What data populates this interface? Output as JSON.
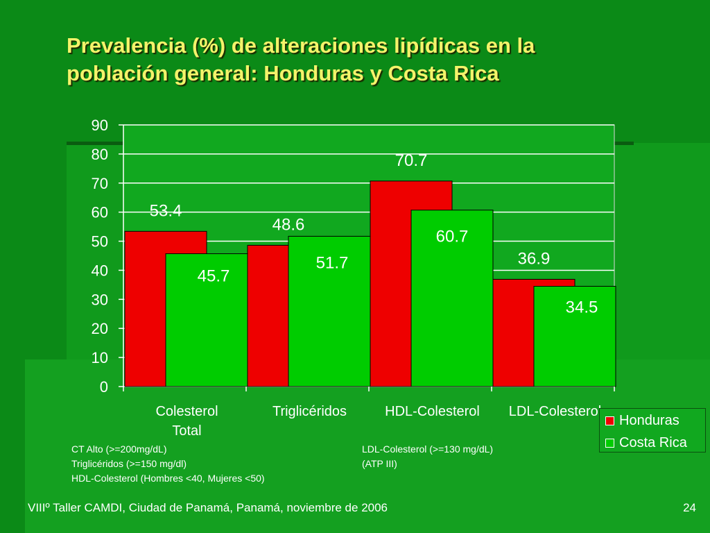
{
  "slide": {
    "title_line1": "Prevalencia (%) de alteraciones lipídicas en la",
    "title_line2": "población general: Honduras y Costa Rica",
    "footer": "VIIIº Taller CAMDI, Ciudad de Panamá, Panamá, noviembre de 2006",
    "page_number": "24"
  },
  "notes": {
    "left": [
      "CT Alto (>=200mg/dL)",
      "Triglicéridos (>=150 mg/dl)",
      "HDL-Colesterol (Hombres <40, Mujeres <50)"
    ],
    "right": [
      "LDL-Colesterol (>=130 mg/dL)",
      "(ATP III)"
    ]
  },
  "colors": {
    "honduras": "#ee0000",
    "costa_rica": "#00cc00",
    "plot_bg": "#11a81f",
    "text": "#ffffff",
    "title": "#f4f36a"
  },
  "chart_data": {
    "type": "bar",
    "title": "Prevalencia (%) de alteraciones lipídicas en la población general: Honduras y Costa Rica",
    "categories": [
      [
        "Colesterol",
        "Total"
      ],
      [
        "Triglicéridos"
      ],
      [
        "HDL-Colesterol"
      ],
      [
        "LDL-Colesterol"
      ]
    ],
    "series": [
      {
        "name": "Honduras",
        "values": [
          53.4,
          48.6,
          70.7,
          36.9
        ],
        "labels": [
          "53.4",
          "48.6",
          "70.7",
          "36.9"
        ]
      },
      {
        "name": "Costa Rica",
        "values": [
          45.7,
          51.7,
          60.7,
          34.5
        ],
        "labels": [
          "45.7",
          "51.7",
          "60.7",
          "34.5"
        ]
      }
    ],
    "yticks": [
      0,
      10,
      20,
      30,
      40,
      50,
      60,
      70,
      80,
      90
    ],
    "ylim": [
      0,
      90
    ],
    "xlabel": "",
    "ylabel": "",
    "grid": true,
    "legend": "bottom-right"
  }
}
